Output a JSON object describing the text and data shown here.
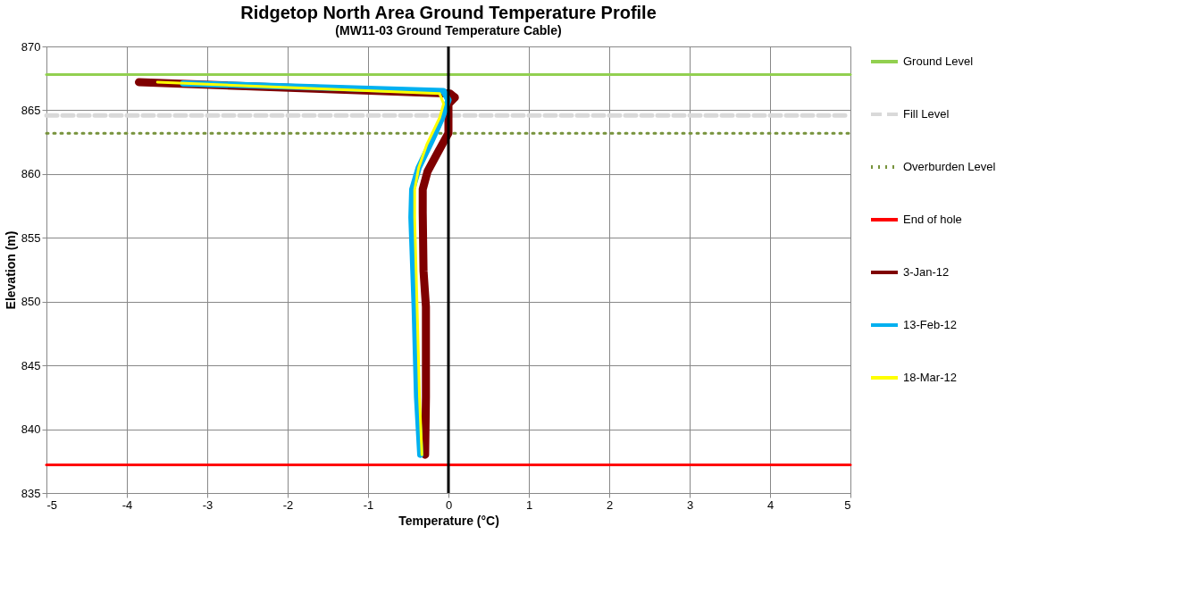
{
  "chart_data": {
    "type": "line",
    "title": "Ridgetop North Area Ground Temperature Profile",
    "subtitle": "(MW11-03 Ground Temperature Cable)",
    "xlabel": "Temperature (°C)",
    "ylabel": "Elevation (m)",
    "xlim": [
      -5,
      5
    ],
    "xticks": [
      -5,
      -4,
      -3,
      -2,
      -1,
      0,
      1,
      2,
      3,
      4,
      5
    ],
    "ylim": [
      835,
      870
    ],
    "yticks": [
      835,
      840,
      845,
      850,
      855,
      860,
      865,
      870
    ],
    "grid": true,
    "legend": "right",
    "ref_lines": [
      {
        "axis": "x",
        "value": 0,
        "color": "#000000"
      }
    ],
    "series": [
      {
        "name": "Ground Level",
        "color": "#92d050",
        "line_style": "solid",
        "x": [
          -5,
          5
        ],
        "values": [
          867.8,
          867.8
        ]
      },
      {
        "name": "Fill Level",
        "color": "#d9d9d9",
        "line_style": "dashed",
        "x": [
          -5,
          5
        ],
        "values": [
          864.6,
          864.6
        ]
      },
      {
        "name": "Overburden Level",
        "color": "#77933c",
        "line_style": "dotted",
        "x": [
          -5,
          5
        ],
        "values": [
          863.2,
          863.2
        ]
      },
      {
        "name": "End of hole",
        "color": "#ff0000",
        "line_style": "solid",
        "x": [
          -5,
          5
        ],
        "values": [
          837.2,
          837.2
        ]
      },
      {
        "name": "3-Jan-12",
        "color": "#7f0000",
        "line_style": "solid",
        "x": [
          -3.85,
          0.02,
          0.08,
          0.0,
          0.0,
          -0.14,
          -0.26,
          -0.32,
          -0.32,
          -0.31,
          -0.28,
          -0.28,
          -0.29
        ],
        "values": [
          867.2,
          866.3,
          866.0,
          865.5,
          863.2,
          861.6,
          860.2,
          858.8,
          857.0,
          852.4,
          849.6,
          842.5,
          838.0
        ]
      },
      {
        "name": "13-Feb-12",
        "color": "#00b0f0",
        "line_style": "solid",
        "x": [
          -3.3,
          -0.06,
          0.0,
          -0.08,
          -0.21,
          -0.37,
          -0.45,
          -0.46,
          -0.42,
          -0.39,
          -0.35
        ],
        "values": [
          867.1,
          866.5,
          865.8,
          864.4,
          862.6,
          860.5,
          858.8,
          856.6,
          849.6,
          842.5,
          838.0
        ]
      },
      {
        "name": "18-Mar-12",
        "color": "#ffff00",
        "line_style": "solid",
        "x": [
          -3.62,
          -0.11,
          -0.06,
          -0.11,
          -0.27,
          -0.37,
          -0.42,
          -0.42,
          -0.39,
          -0.36,
          -0.33
        ],
        "values": [
          867.2,
          866.3,
          865.5,
          864.4,
          862.3,
          860.5,
          858.8,
          856.6,
          849.6,
          842.5,
          838.0
        ]
      }
    ]
  }
}
